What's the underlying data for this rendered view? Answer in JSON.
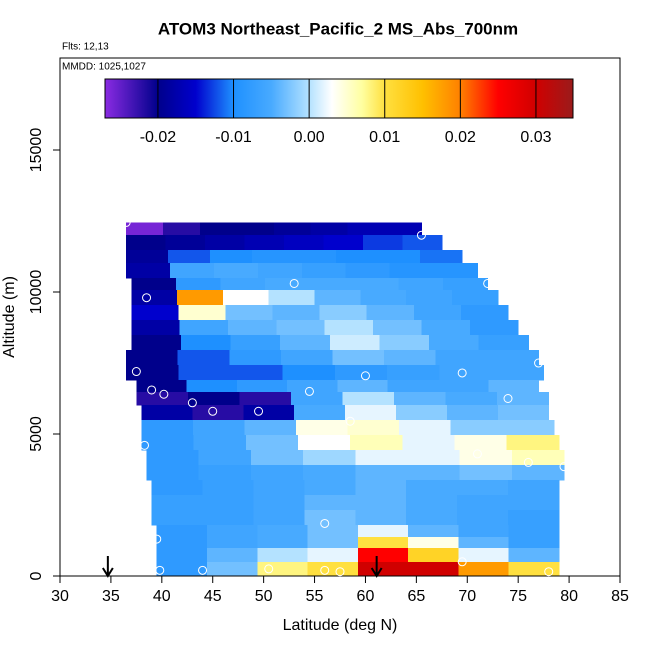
{
  "chart_data": {
    "type": "heatmap",
    "title": "ATOM3 Northeast_Pacific_2 MS_Abs_700nm",
    "subtitle": "Flts: 12,13",
    "annotation": "MMDD: 1025,1027",
    "x_label": "Latitude (deg N)",
    "y_label": "Altitude (m)",
    "xlim": [
      30,
      85
    ],
    "ylim": [
      0,
      18240
    ],
    "xticks": [
      30,
      35,
      40,
      45,
      50,
      55,
      60,
      65,
      70,
      75,
      80,
      85
    ],
    "yticks": [
      0,
      5000,
      10000,
      15000
    ],
    "clim": [
      -0.027,
      0.0349
    ],
    "cticks": [
      -0.02,
      -0.01,
      {
        "value": 0,
        "label": "0.00"
      },
      0.01,
      0.02,
      0.03
    ],
    "colorscale": [
      [
        -0.027,
        "#8a2be2"
      ],
      [
        -0.02,
        "#00008b"
      ],
      [
        -0.015,
        "#0000cd"
      ],
      [
        -0.01,
        "#1e90ff"
      ],
      [
        -0.005,
        "#48aaff"
      ],
      [
        0,
        "#b4e2ff"
      ],
      [
        0.003,
        "#ffffff"
      ],
      [
        0.007,
        "#ffffa0"
      ],
      [
        0.01,
        "#ffe040"
      ],
      [
        0.015,
        "#ffc000"
      ],
      [
        0.02,
        "#ff8000"
      ],
      [
        0.025,
        "#ff0000"
      ],
      [
        0.03,
        "#d00000"
      ],
      [
        0.0349,
        "#9b1b1b"
      ]
    ],
    "rows": [
      {
        "alt": [
          12000,
          12450
        ],
        "lat": [
          36.5,
          65.5
        ],
        "values": [
          -0.026,
          -0.022,
          -0.02,
          -0.02,
          -0.019,
          -0.018,
          -0.017,
          -0.017
        ]
      },
      {
        "alt": [
          11480,
          12000
        ],
        "lat": [
          36.5,
          67.5
        ],
        "values": [
          -0.02,
          -0.019,
          -0.018,
          -0.017,
          -0.016,
          -0.015,
          -0.013,
          -0.012
        ]
      },
      {
        "alt": [
          11020,
          11480
        ],
        "lat": [
          36.5,
          69.5
        ],
        "values": [
          -0.019,
          -0.012,
          -0.01,
          -0.009,
          -0.009,
          -0.01,
          -0.01,
          -0.011
        ]
      },
      {
        "alt": [
          10490,
          11020
        ],
        "lat": [
          36.5,
          71
        ],
        "values": [
          -0.018,
          -0.006,
          -0.005,
          -0.006,
          -0.007,
          -0.008,
          -0.009,
          -0.009
        ]
      },
      {
        "alt": [
          10070,
          10490
        ],
        "lat": [
          37,
          72
        ],
        "values": [
          -0.02,
          -0.008,
          -0.006,
          -0.005,
          -0.005,
          -0.005,
          -0.006,
          -0.007
        ]
      },
      {
        "alt": [
          9540,
          10070
        ],
        "lat": [
          37,
          73
        ],
        "values": [
          -0.018,
          0.018,
          0.003,
          0,
          -0.004,
          -0.005,
          -0.006,
          -0.007
        ]
      },
      {
        "alt": [
          9010,
          9540
        ],
        "lat": [
          37,
          74
        ],
        "values": [
          -0.015,
          0.005,
          -0.003,
          -0.004,
          -0.002,
          -0.004,
          -0.006,
          -0.008
        ]
      },
      {
        "alt": [
          8490,
          9010
        ],
        "lat": [
          37,
          75
        ],
        "values": [
          -0.018,
          -0.006,
          -0.004,
          -0.003,
          0,
          -0.003,
          -0.005,
          -0.008
        ]
      },
      {
        "alt": [
          7960,
          8490
        ],
        "lat": [
          37,
          76
        ],
        "values": [
          -0.02,
          -0.01,
          -0.007,
          -0.004,
          0.001,
          -0.002,
          -0.005,
          -0.007
        ]
      },
      {
        "alt": [
          7430,
          7960
        ],
        "lat": [
          36.5,
          77
        ],
        "values": [
          -0.02,
          -0.012,
          -0.008,
          -0.006,
          -0.003,
          -0.004,
          -0.006,
          -0.006
        ]
      },
      {
        "alt": [
          6900,
          7430
        ],
        "lat": [
          36.5,
          77.5
        ],
        "values": [
          -0.02,
          -0.012,
          -0.012,
          -0.01,
          -0.008,
          -0.007,
          -0.006,
          -0.006
        ]
      },
      {
        "alt": [
          6480,
          6900
        ],
        "lat": [
          37.5,
          77
        ],
        "values": [
          -0.02,
          -0.01,
          -0.008,
          -0.006,
          -0.004,
          -0.006,
          -0.006,
          -0.004
        ]
      },
      {
        "alt": [
          6020,
          6480
        ],
        "lat": [
          37.5,
          78
        ],
        "values": [
          -0.022,
          -0.02,
          -0.022,
          -0.006,
          0,
          -0.004,
          -0.005,
          -0.004
        ]
      },
      {
        "alt": [
          5490,
          6020
        ],
        "lat": [
          38,
          78
        ],
        "values": [
          -0.018,
          -0.022,
          -0.018,
          -0.005,
          0.002,
          -0.002,
          -0.004,
          -0.003
        ]
      },
      {
        "alt": [
          4960,
          5490
        ],
        "lat": [
          38,
          78.5
        ],
        "values": [
          -0.008,
          -0.006,
          -0.004,
          0.004,
          0.005,
          0.002,
          -0.002,
          -0.002
        ]
      },
      {
        "alt": [
          4440,
          4960
        ],
        "lat": [
          38,
          79
        ],
        "values": [
          -0.008,
          -0.006,
          -0.003,
          0.003,
          0.006,
          0.002,
          0.004,
          0.008
        ]
      },
      {
        "alt": [
          3910,
          4440
        ],
        "lat": [
          38.5,
          79.5
        ],
        "values": [
          -0.008,
          -0.006,
          -0.003,
          -0.001,
          0.002,
          0.002,
          0.004,
          0.006
        ]
      },
      {
        "alt": [
          3380,
          3910
        ],
        "lat": [
          38.5,
          79.5
        ],
        "values": [
          -0.008,
          -0.007,
          -0.006,
          -0.005,
          -0.004,
          -0.004,
          -0.003,
          -0.004
        ]
      },
      {
        "alt": [
          2850,
          3380
        ],
        "lat": [
          39,
          79
        ],
        "values": [
          -0.008,
          -0.007,
          -0.006,
          -0.005,
          -0.004,
          -0.005,
          -0.005,
          -0.006
        ]
      },
      {
        "alt": [
          2320,
          2850
        ],
        "lat": [
          39,
          79
        ],
        "values": [
          -0.007,
          -0.007,
          -0.006,
          -0.004,
          -0.004,
          -0.005,
          -0.006,
          -0.006
        ]
      },
      {
        "alt": [
          1800,
          2320
        ],
        "lat": [
          39,
          79
        ],
        "values": [
          -0.007,
          -0.007,
          -0.006,
          -0.003,
          -0.004,
          -0.005,
          -0.006,
          -0.007
        ]
      },
      {
        "alt": [
          1370,
          1800
        ],
        "lat": [
          39.5,
          79
        ],
        "values": [
          -0.008,
          -0.006,
          -0.005,
          -0.003,
          0.002,
          -0.004,
          -0.006,
          -0.007
        ]
      },
      {
        "alt": [
          990,
          1370
        ],
        "lat": [
          39.5,
          79
        ],
        "values": [
          -0.008,
          -0.006,
          -0.005,
          -0.003,
          0.01,
          0.004,
          -0.004,
          -0.007
        ]
      },
      {
        "alt": [
          490,
          990
        ],
        "lat": [
          39.5,
          79
        ],
        "values": [
          -0.008,
          -0.004,
          0,
          0.002,
          0.025,
          0.012,
          0.002,
          -0.004
        ]
      },
      {
        "alt": [
          0,
          490
        ],
        "lat": [
          39.5,
          79
        ],
        "values": [
          -0.008,
          -0.003,
          0.008,
          0.01,
          0.03,
          0.03,
          0.018,
          0.01
        ]
      }
    ],
    "points": {
      "x": [
        36.5,
        65.5,
        53,
        72,
        38.5,
        47,
        37.5,
        60,
        69.5,
        77,
        39,
        40.2,
        43,
        45,
        49.5,
        54.5,
        58.5,
        74,
        38.3,
        71,
        76,
        79.5,
        56,
        39.5,
        69.5,
        39.8,
        44,
        50.5,
        56,
        57.5,
        78
      ],
      "y": [
        12450,
        12000,
        10300,
        10300,
        9800,
        9800,
        7200,
        7050,
        7150,
        7500,
        6550,
        6400,
        6100,
        5800,
        5800,
        6500,
        5450,
        6250,
        4600,
        4300,
        4000,
        3850,
        1850,
        1300,
        500,
        200,
        200,
        250,
        200,
        150,
        150
      ]
    },
    "arrows": [
      34.7,
      61.1
    ]
  }
}
